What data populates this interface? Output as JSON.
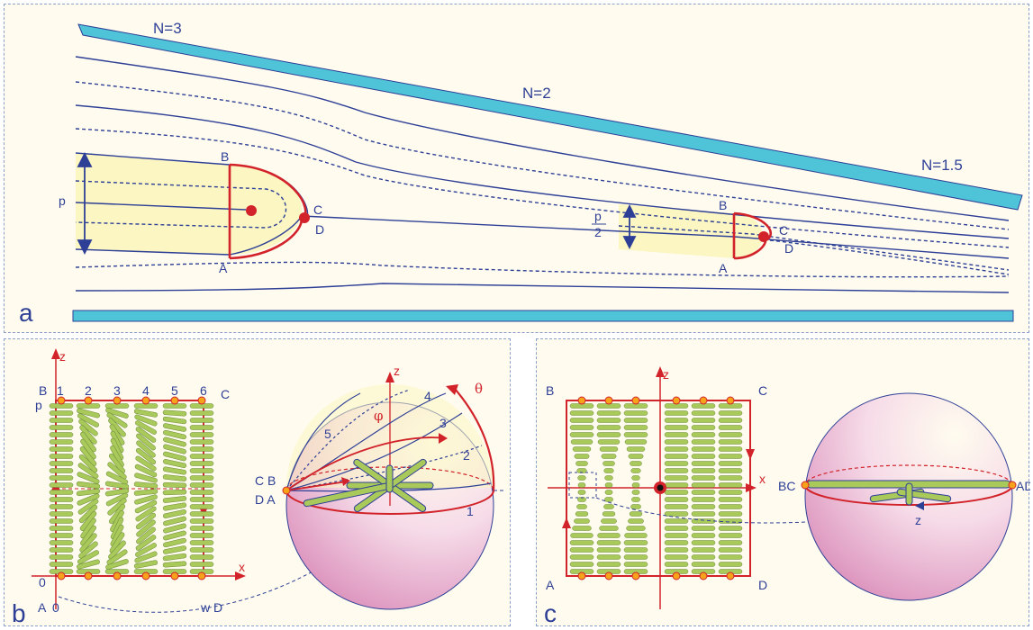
{
  "panel_a": {
    "label": "a",
    "n3": "N=3",
    "n2": "N=2",
    "n15": "N=1.5",
    "p": "p",
    "p_half_num": "p",
    "p_half_den": "2",
    "b1": "B",
    "a1": "A",
    "c1": "C",
    "d1": "D",
    "b2": "B",
    "a2": "A",
    "c2": "C",
    "d2": "D"
  },
  "panel_b": {
    "label": "b",
    "z": "z",
    "x": "x",
    "B": "B",
    "C": "C",
    "A": "A",
    "D": "D",
    "p": "p",
    "zero_left": "0",
    "zero_bottom": "0",
    "w": "w",
    "cols": [
      "1",
      "2",
      "3",
      "4",
      "5",
      "6"
    ],
    "sphere_z": "z",
    "theta": "θ",
    "phi": "φ",
    "meridians": [
      "5",
      "4",
      "3",
      "2",
      "1"
    ],
    "cb": "C B",
    "da": "D A"
  },
  "panel_c": {
    "label": "c",
    "z": "z",
    "x": "x",
    "B": "B",
    "C": "C",
    "A": "A",
    "D": "D",
    "bc": "BC",
    "ad": "AD",
    "sphere_z": "z"
  },
  "colors": {
    "panel_bg": "#fffcef",
    "line_blue": "#2e3f96",
    "wall_cyan": "#4fc4d8",
    "loop_red": "#d2232a",
    "fill_yellow": "#fbf6c2",
    "rod_green": "#a9c95b"
  }
}
